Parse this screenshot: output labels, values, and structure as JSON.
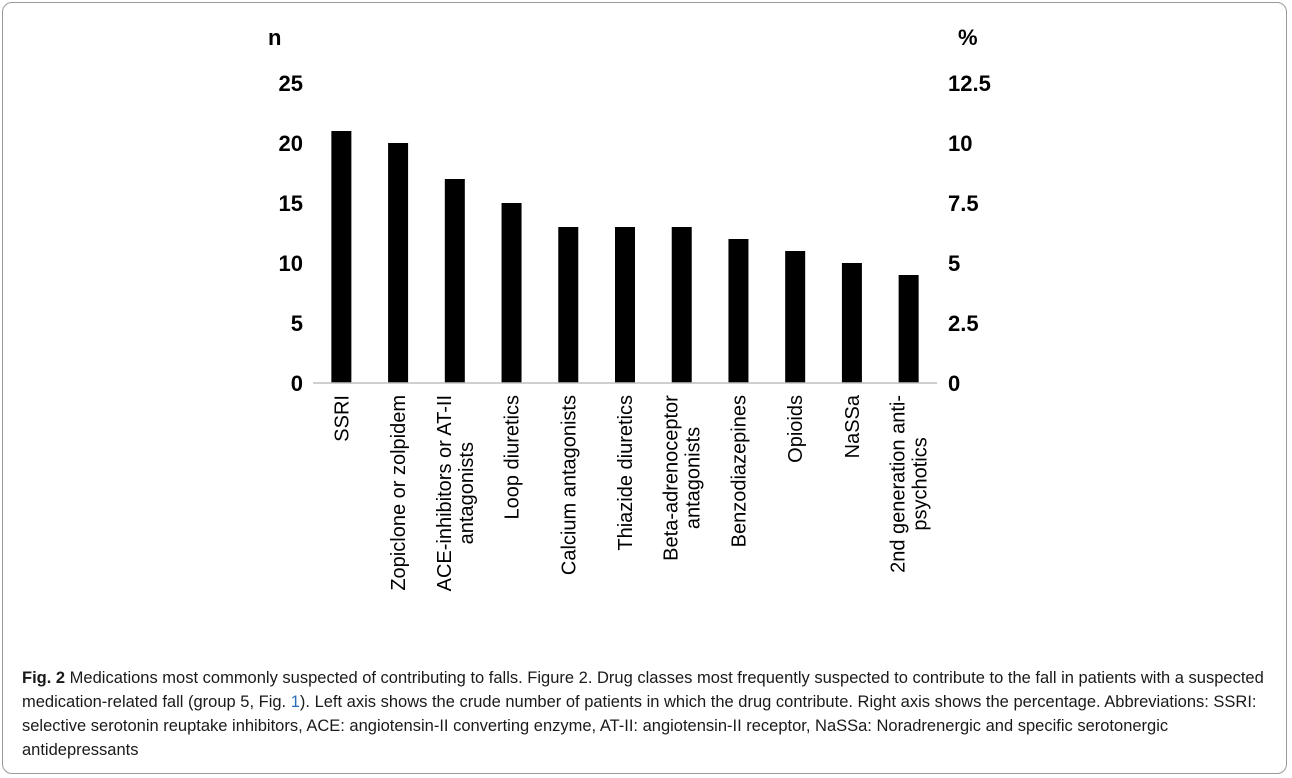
{
  "chart_data": {
    "type": "bar",
    "categories": [
      "SSRI",
      "Zopiclone or zolpidem",
      "ACE-inhibitors or AT-II antagonists",
      "Loop diuretics",
      "Calcium antagonists",
      "Thiazide diuretics",
      "Beta-adrenoceptor antagonists",
      "Benzodiazepines",
      "Opioids",
      "NaSSa",
      "2nd generation anti-psychotics"
    ],
    "category_lines": [
      [
        "SSRI"
      ],
      [
        "Zopiclone or zolpidem"
      ],
      [
        "ACE-inhibitors or AT-II",
        "antagonists"
      ],
      [
        "Loop diuretics"
      ],
      [
        "Calcium antagonists"
      ],
      [
        "Thiazide diuretics"
      ],
      [
        "Beta-adrenoceptor",
        "antagonists"
      ],
      [
        "Benzodiazepines"
      ],
      [
        "Opioids"
      ],
      [
        "NaSSa"
      ],
      [
        "2nd generation anti-",
        "psychotics"
      ]
    ],
    "values": [
      21,
      20,
      17,
      15,
      13,
      13,
      13,
      12,
      11,
      10,
      9
    ],
    "ylabel": "n",
    "y2label": "%",
    "ylim": [
      0,
      25
    ],
    "y2lim": [
      0,
      12.5
    ],
    "yticks": [
      "0",
      "5",
      "10",
      "15",
      "20",
      "25"
    ],
    "y2ticks": [
      "0",
      "2.5",
      "5",
      "7.5",
      "10",
      "12.5"
    ],
    "grid": false,
    "bar_color": "#000000"
  },
  "caption": {
    "fig_label": "Fig. 2",
    "text_part1": " Medications most commonly suspected of contributing to falls. Figure 2. Drug classes most frequently suspected to contribute to the fall in patients with a suspected medication-related fall (group 5, Fig. ",
    "link_text": "1",
    "text_part2": "). Left axis shows the crude number of patients in which the drug contribute. Right axis shows the percentage. Abbreviations: SSRI: selective serotonin reuptake inhibitors, ACE: angiotensin-II converting enzyme, AT-II: angiotensin-II receptor, NaSSa: Noradrenergic and specific serotonergic antidepressants"
  }
}
